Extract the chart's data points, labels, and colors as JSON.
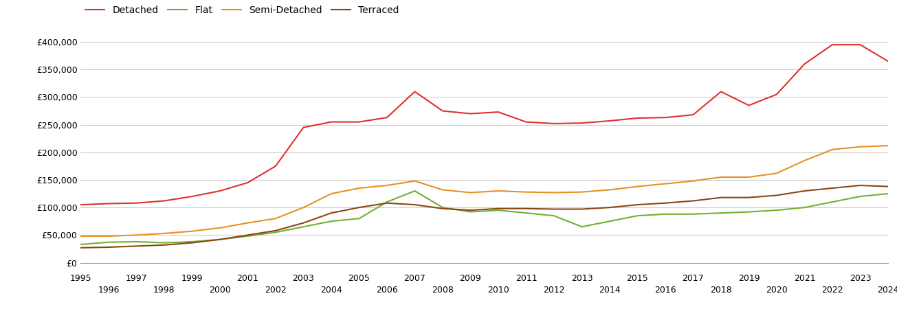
{
  "years": [
    1995,
    1996,
    1997,
    1998,
    1999,
    2000,
    2001,
    2002,
    2003,
    2004,
    2005,
    2006,
    2007,
    2008,
    2009,
    2010,
    2011,
    2012,
    2013,
    2014,
    2015,
    2016,
    2017,
    2018,
    2019,
    2020,
    2021,
    2022,
    2023,
    2024
  ],
  "detached": [
    105000,
    107000,
    108000,
    112000,
    120000,
    130000,
    145000,
    175000,
    245000,
    255000,
    255000,
    263000,
    310000,
    275000,
    270000,
    273000,
    255000,
    252000,
    253000,
    257000,
    262000,
    263000,
    268000,
    310000,
    285000,
    305000,
    360000,
    395000,
    395000,
    365000
  ],
  "flat": [
    33000,
    37000,
    38000,
    36000,
    38000,
    42000,
    48000,
    55000,
    65000,
    75000,
    80000,
    110000,
    130000,
    100000,
    92000,
    95000,
    90000,
    85000,
    65000,
    75000,
    85000,
    88000,
    88000,
    90000,
    92000,
    95000,
    100000,
    110000,
    120000,
    125000
  ],
  "semi_detached": [
    48000,
    48000,
    50000,
    53000,
    57000,
    63000,
    72000,
    80000,
    100000,
    125000,
    135000,
    140000,
    148000,
    132000,
    127000,
    130000,
    128000,
    127000,
    128000,
    132000,
    138000,
    143000,
    148000,
    155000,
    155000,
    162000,
    185000,
    205000,
    210000,
    212000
  ],
  "terraced": [
    27000,
    28000,
    30000,
    32000,
    36000,
    42000,
    50000,
    58000,
    72000,
    90000,
    100000,
    108000,
    105000,
    98000,
    95000,
    98000,
    98000,
    97000,
    97000,
    100000,
    105000,
    108000,
    112000,
    118000,
    118000,
    122000,
    130000,
    135000,
    140000,
    138000
  ],
  "colors": {
    "detached": "#e03030",
    "flat": "#70b030",
    "semi_detached": "#e89020",
    "terraced": "#8b4513"
  },
  "legend_labels": [
    "Detached",
    "Flat",
    "Semi-Detached",
    "Terraced"
  ],
  "ylim": [
    0,
    420000
  ],
  "yticks": [
    0,
    50000,
    100000,
    150000,
    200000,
    250000,
    300000,
    350000,
    400000
  ],
  "background_color": "#ffffff",
  "grid_color": "#cccccc",
  "odd_years": [
    1995,
    1997,
    1999,
    2001,
    2003,
    2005,
    2007,
    2009,
    2011,
    2013,
    2015,
    2017,
    2019,
    2021,
    2023
  ],
  "even_years": [
    1996,
    1998,
    2000,
    2002,
    2004,
    2006,
    2008,
    2010,
    2012,
    2014,
    2016,
    2018,
    2020,
    2022,
    2024
  ]
}
